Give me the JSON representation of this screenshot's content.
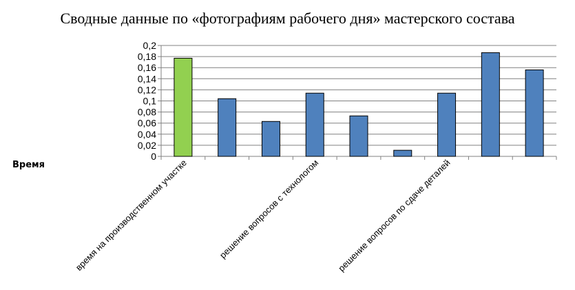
{
  "chart_data": {
    "type": "bar",
    "title": "Сводные данные по «фотографиям рабочего дня» мастерского состава",
    "ylabel": "Время",
    "xlabel": "",
    "ylim": [
      0,
      0.2
    ],
    "yticks": [
      "0",
      "0,02",
      "0,04",
      "0,06",
      "0,08",
      "0,1",
      "0,12",
      "0,14",
      "0,16",
      "0,18",
      "0,2"
    ],
    "grid": true,
    "categories": [
      "время на производственном участке",
      "",
      "",
      "решение вопросов с технологом",
      "",
      "",
      "решение вопросов по сдаче деталей",
      "",
      ""
    ],
    "values": [
      0.177,
      0.104,
      0.063,
      0.114,
      0.073,
      0.011,
      0.114,
      0.187,
      0.156
    ],
    "bar_colors": [
      "#92d050",
      "#4f81bd",
      "#4f81bd",
      "#4f81bd",
      "#4f81bd",
      "#4f81bd",
      "#4f81bd",
      "#4f81bd",
      "#4f81bd"
    ]
  }
}
